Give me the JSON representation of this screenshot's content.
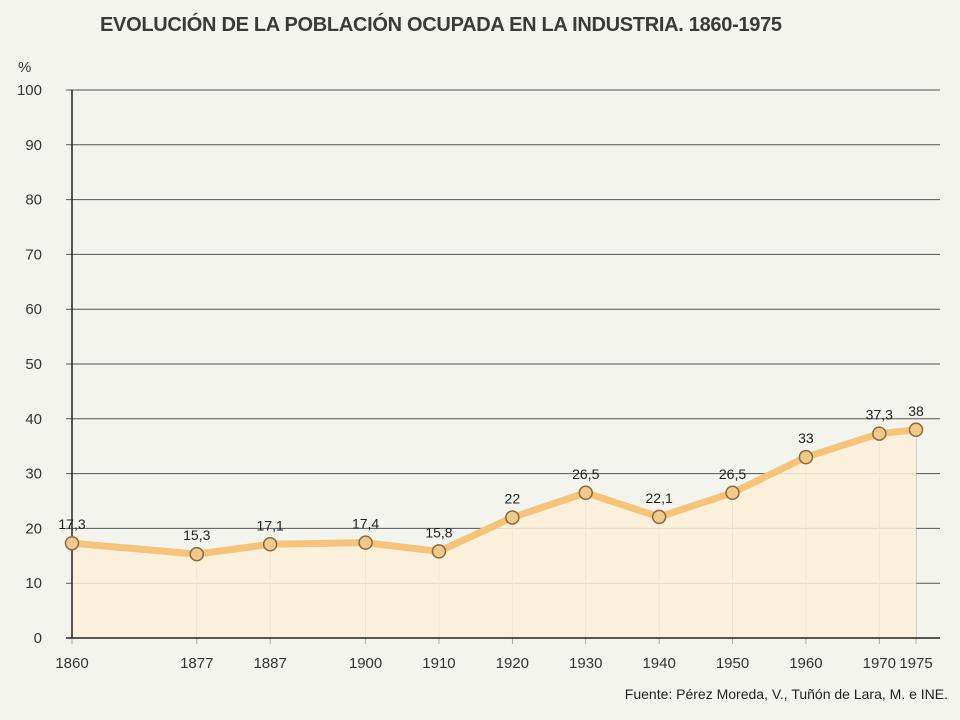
{
  "title": "EVOLUCIÓN DE LA POBLACIÓN OCUPADA EN LA INDUSTRIA. 1860-1975",
  "source": "Fuente: Pérez Moreda, V., Tuñón de Lara, M. e INE.",
  "colors": {
    "line": "#f5c47a",
    "marker_fill": "#f2c98c",
    "marker_stroke": "#8a6a3a",
    "area": "#faeed8",
    "grid": "#555555"
  },
  "chart_data": {
    "type": "line",
    "title": "EVOLUCIÓN DE LA POBLACIÓN OCUPADA EN LA INDUSTRIA. 1860-1975",
    "ylabel": "%",
    "xlabel": "",
    "x": [
      1860,
      1877,
      1887,
      1900,
      1910,
      1920,
      1930,
      1940,
      1950,
      1960,
      1970,
      1975
    ],
    "y": [
      17.3,
      15.3,
      17.1,
      17.4,
      15.8,
      22,
      26.5,
      22.1,
      26.5,
      33,
      37.3,
      38
    ],
    "data_labels": [
      "17,3",
      "15,3",
      "17,1",
      "17,4",
      "15,8",
      "22",
      "26,5",
      "22,1",
      "26,5",
      "33",
      "37,3",
      "38"
    ],
    "x_tick_labels": [
      "1860",
      "1877",
      "1887",
      "1900",
      "1910",
      "1920",
      "1930",
      "1940",
      "1950",
      "1960",
      "1970",
      "1975"
    ],
    "y_ticks": [
      0,
      10,
      20,
      30,
      40,
      50,
      60,
      70,
      80,
      90,
      100
    ],
    "ylim": [
      0,
      100
    ],
    "xlim": [
      1860,
      1975
    ],
    "grid": true
  }
}
